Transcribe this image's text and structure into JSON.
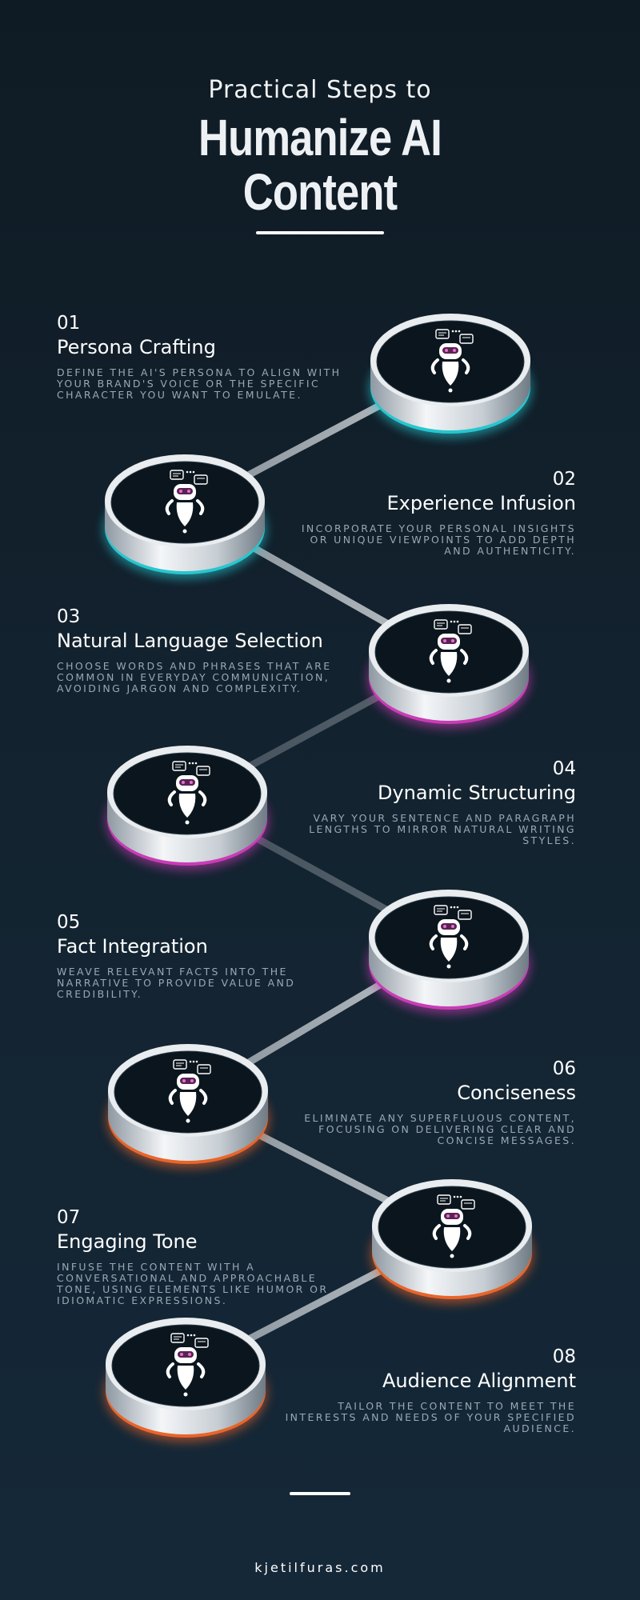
{
  "header": {
    "subtitle": "Practical Steps to",
    "title_line1": "Humanize AI",
    "title_line2": "Content"
  },
  "steps": [
    {
      "num": "01",
      "name": "Persona Crafting",
      "desc": "Define the AI's persona to align with your brand's voice or the specific character you want to emulate."
    },
    {
      "num": "02",
      "name": "Experience Infusion",
      "desc": "Incorporate your personal insights or unique viewpoints to add depth and authenticity."
    },
    {
      "num": "03",
      "name": "Natural Language Selection",
      "desc": "Choose words and phrases that are common in everyday communication, avoiding jargon and complexity."
    },
    {
      "num": "04",
      "name": "Dynamic Structuring",
      "desc": "Vary your sentence and paragraph lengths to mirror natural writing styles."
    },
    {
      "num": "05",
      "name": "Fact Integration",
      "desc": "Weave relevant facts into the narrative to provide value and credibility."
    },
    {
      "num": "06",
      "name": "Conciseness",
      "desc": "Eliminate any superfluous content, focusing on delivering clear and concise messages."
    },
    {
      "num": "07",
      "name": "Engaging Tone",
      "desc": "Infuse the content with a conversational and approachable tone, using elements like humor or idiomatic expressions."
    },
    {
      "num": "08",
      "name": "Audience Alignment",
      "desc": "Tailor the content to meet the interests and needs of your specified audience."
    }
  ],
  "colors": {
    "teal": "#27c6cf",
    "pink": "#c93cb6",
    "orange": "#e8652b"
  },
  "footer": "kjetilfuras.com"
}
